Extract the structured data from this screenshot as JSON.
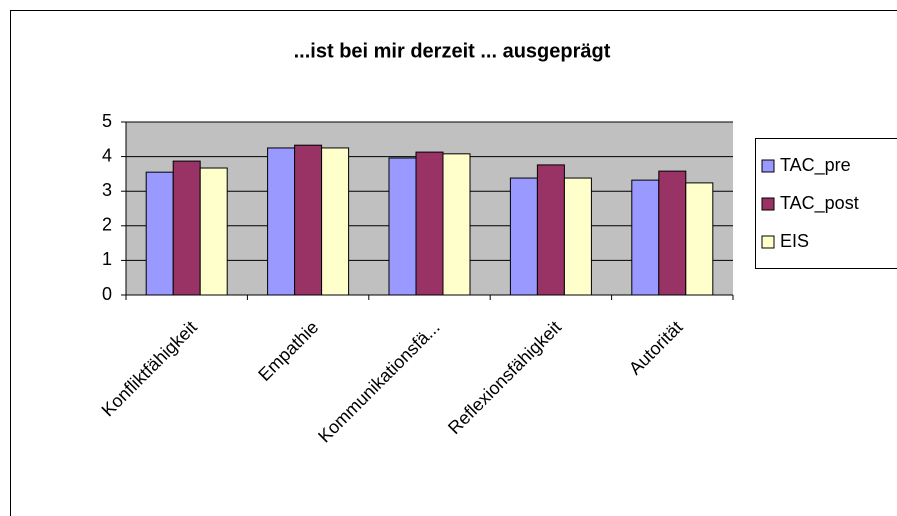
{
  "chart_data": {
    "type": "bar",
    "title": "...ist bei mir derzeit ... ausgeprägt",
    "categories": [
      "Konfliktfähigkeit",
      "Empathie",
      "Kommunikationsfä...",
      "Reflexionsfähigkeit",
      "Autorität"
    ],
    "series": [
      {
        "name": "TAC_pre",
        "color": "#9999ff",
        "values": [
          3.55,
          4.25,
          3.96,
          3.38,
          3.32
        ]
      },
      {
        "name": "TAC_post",
        "color": "#993366",
        "values": [
          3.87,
          4.33,
          4.13,
          3.76,
          3.58
        ]
      },
      {
        "name": "EIS",
        "color": "#ffffcc",
        "values": [
          3.67,
          4.25,
          4.08,
          3.38,
          3.24
        ]
      }
    ],
    "ylim": [
      0,
      5
    ],
    "yticks": [
      0,
      1,
      2,
      3,
      4,
      5
    ],
    "grid": true,
    "legend": "right"
  }
}
